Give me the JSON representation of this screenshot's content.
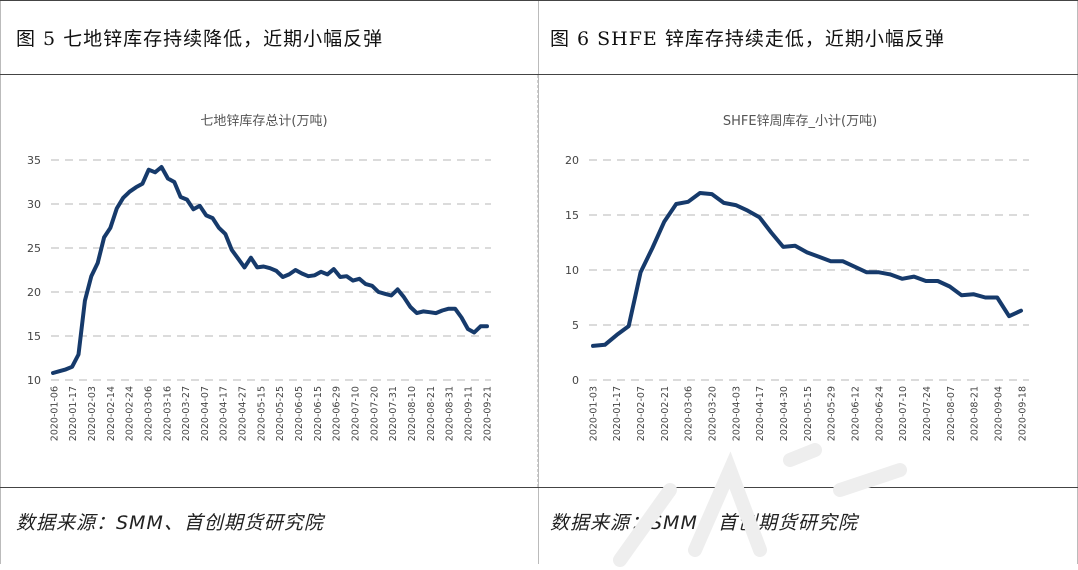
{
  "figures": [
    {
      "fig_title": "图 5 七地锌库存持续降低，近期小幅反弹",
      "source": "数据来源：SMM、首创期货研究院"
    },
    {
      "fig_title": "图 6 SHFE 锌库存持续走低，近期小幅反弹",
      "source": "数据来源：SMM、首创期货研究院"
    }
  ],
  "chart_data": [
    {
      "type": "line",
      "title": "七地锌库存总计(万吨)",
      "xlabel": "",
      "ylabel": "",
      "ylim": [
        10,
        35
      ],
      "yticks": [
        10,
        15,
        20,
        25,
        30,
        35
      ],
      "grid": true,
      "line_color": "#163a6b",
      "x_tick_labels": [
        "2020-01-06",
        "2020-01-17",
        "2020-02-03",
        "2020-02-14",
        "2020-02-24",
        "2020-03-06",
        "2020-03-16",
        "2020-03-27",
        "2020-04-07",
        "2020-04-17",
        "2020-04-27",
        "2020-05-15",
        "2020-05-25",
        "2020-06-05",
        "2020-06-15",
        "2020-06-29",
        "2020-07-10",
        "2020-07-20",
        "2020-07-31",
        "2020-08-10",
        "2020-08-21",
        "2020-08-31",
        "2020-09-11",
        "2020-09-21"
      ],
      "values": [
        10.8,
        11.0,
        11.2,
        11.5,
        12.9,
        19.0,
        21.8,
        23.3,
        26.2,
        27.3,
        29.5,
        30.7,
        31.4,
        31.9,
        32.3,
        33.9,
        33.6,
        34.2,
        32.9,
        32.5,
        30.8,
        30.5,
        29.4,
        29.8,
        28.7,
        28.4,
        27.3,
        26.6,
        24.8,
        23.8,
        22.8,
        23.9,
        22.8,
        22.9,
        22.7,
        22.4,
        21.7,
        22.0,
        22.5,
        22.1,
        21.8,
        21.9,
        22.3,
        22.0,
        22.6,
        21.7,
        21.8,
        21.3,
        21.5,
        20.9,
        20.7,
        20.0,
        19.8,
        19.6,
        20.3,
        19.4,
        18.3,
        17.6,
        17.8,
        17.7,
        17.6,
        17.9,
        18.1,
        18.1,
        17.1,
        15.8,
        15.4,
        16.1,
        16.1
      ]
    },
    {
      "type": "line",
      "title": "SHFE锌周库存_小计(万吨)",
      "xlabel": "",
      "ylabel": "",
      "ylim": [
        0,
        20
      ],
      "yticks": [
        0,
        5,
        10,
        15,
        20
      ],
      "grid": true,
      "line_color": "#163a6b",
      "x_tick_labels": [
        "2020-01-03",
        "2020-01-17",
        "2020-02-07",
        "2020-02-21",
        "2020-03-06",
        "2020-03-20",
        "2020-04-03",
        "2020-04-17",
        "2020-04-30",
        "2020-05-15",
        "2020-05-29",
        "2020-06-12",
        "2020-06-24",
        "2020-07-10",
        "2020-07-24",
        "2020-08-07",
        "2020-08-21",
        "2020-09-04",
        "2020-09-18"
      ],
      "values": [
        3.1,
        3.2,
        4.1,
        4.9,
        9.8,
        12.0,
        14.4,
        16.0,
        16.2,
        17.0,
        16.9,
        16.1,
        15.9,
        15.4,
        14.8,
        13.4,
        12.1,
        12.2,
        11.6,
        11.2,
        10.8,
        10.8,
        10.3,
        9.8,
        9.8,
        9.6,
        9.2,
        9.4,
        9.0,
        9.0,
        8.5,
        7.7,
        7.8,
        7.5,
        7.5,
        5.8,
        6.3
      ]
    }
  ]
}
